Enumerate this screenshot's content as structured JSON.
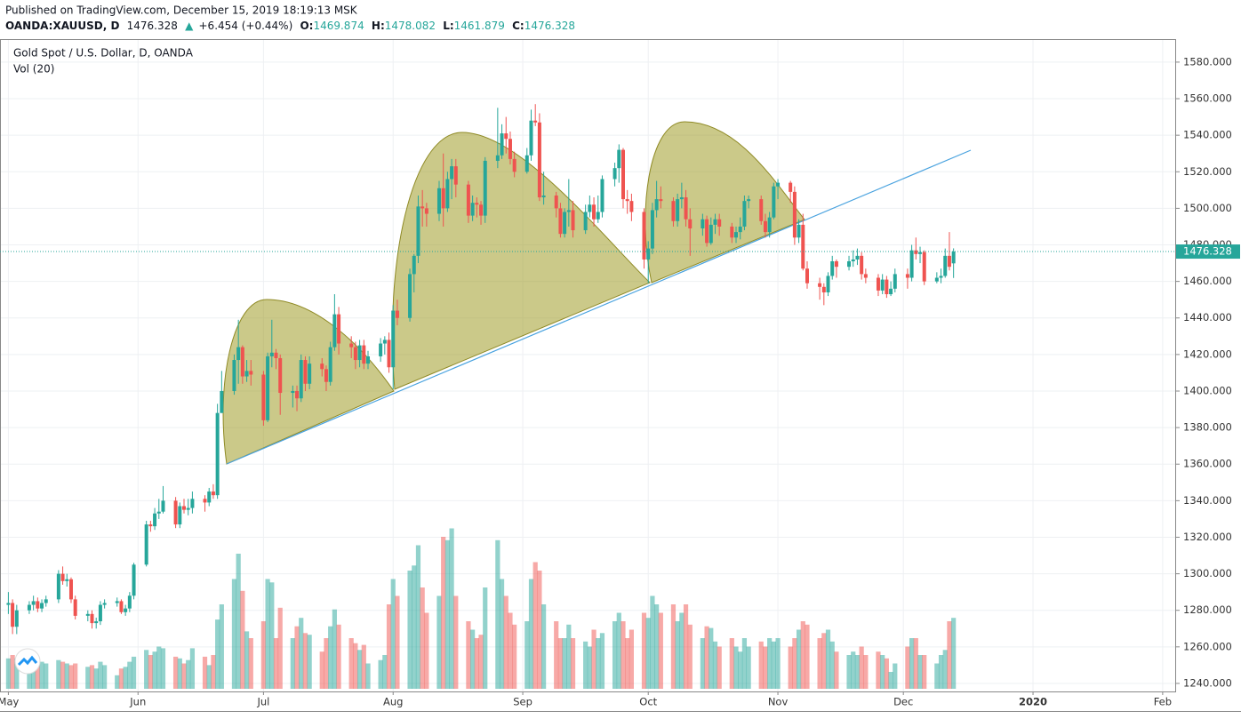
{
  "published": "Published on TradingView.com, December 15, 2019 18:19:13 MSK",
  "header": {
    "symbol": "OANDA:XAUUSD, D",
    "last": "1476.328",
    "arrow": "▲",
    "change": "+6.454 (+0.44%)",
    "o_label": "O:",
    "o": "1469.874",
    "h_label": "H:",
    "h": "1478.082",
    "l_label": "L:",
    "l": "1461.879",
    "c_label": "C:",
    "c": "1476.328"
  },
  "chart_data": {
    "type": "candlestick",
    "title": "Gold Spot / U.S. Dollar, D, OANDA",
    "indicator": "Vol (20)",
    "up_color": "#26a69a",
    "down_color": "#ef5350",
    "grid": true,
    "xlim": [
      -2,
      279
    ],
    "ylim": [
      1235.6,
      1592.6
    ],
    "volume_lim": [
      0,
      100
    ],
    "xticks": [
      {
        "value": 0,
        "label": "May"
      },
      {
        "value": 31,
        "label": "Jun"
      },
      {
        "value": 61,
        "label": "Jul"
      },
      {
        "value": 92,
        "label": "Aug"
      },
      {
        "value": 123,
        "label": "Sep"
      },
      {
        "value": 153,
        "label": "Oct"
      },
      {
        "value": 184,
        "label": "Nov"
      },
      {
        "value": 214,
        "label": "Dec"
      },
      {
        "value": 245,
        "label": "2020"
      },
      {
        "value": 276,
        "label": "Feb"
      }
    ],
    "yticks": [
      {
        "value": 1240,
        "label": "1240.000"
      },
      {
        "value": 1260,
        "label": "1260.000"
      },
      {
        "value": 1280,
        "label": "1280.000"
      },
      {
        "value": 1300,
        "label": "1300.000"
      },
      {
        "value": 1320,
        "label": "1320.000"
      },
      {
        "value": 1340,
        "label": "1340.000"
      },
      {
        "value": 1360,
        "label": "1360.000"
      },
      {
        "value": 1380,
        "label": "1380.000"
      },
      {
        "value": 1400,
        "label": "1400.000"
      },
      {
        "value": 1420,
        "label": "1420.000"
      },
      {
        "value": 1440,
        "label": "1440.000"
      },
      {
        "value": 1460,
        "label": "1460.000"
      },
      {
        "value": 1480,
        "label": "1480.000"
      },
      {
        "value": 1500,
        "label": "1500.000"
      },
      {
        "value": 1520,
        "label": "1520.000"
      },
      {
        "value": 1540,
        "label": "1540.000"
      },
      {
        "value": 1560,
        "label": "1560.000"
      },
      {
        "value": 1580,
        "label": "1580.000"
      }
    ],
    "last_price": {
      "value": 1476.328,
      "label": "1476.328"
    },
    "candles": [
      [
        0,
        1283,
        1290,
        1278,
        1284,
        18
      ],
      [
        1,
        1284,
        1286,
        1267,
        1271,
        20
      ],
      [
        2,
        1271,
        1283,
        1267,
        1280,
        18
      ],
      [
        5,
        1280,
        1285,
        1278,
        1283,
        18
      ],
      [
        6,
        1283,
        1288,
        1280,
        1285,
        15
      ],
      [
        7,
        1285,
        1287,
        1279,
        1281,
        15
      ],
      [
        8,
        1281,
        1286,
        1279,
        1284,
        16
      ],
      [
        9,
        1284,
        1288,
        1282,
        1286,
        15
      ],
      [
        12,
        1286,
        1302,
        1284,
        1300,
        17
      ],
      [
        13,
        1300,
        1304,
        1294,
        1296,
        16
      ],
      [
        14,
        1296,
        1300,
        1293,
        1297,
        15
      ],
      [
        15,
        1297,
        1298,
        1284,
        1286,
        14
      ],
      [
        16,
        1286,
        1288,
        1275,
        1277,
        15
      ],
      [
        19,
        1277,
        1280,
        1274,
        1278,
        13
      ],
      [
        20,
        1278,
        1280,
        1270,
        1273,
        14
      ],
      [
        21,
        1273,
        1276,
        1270,
        1274,
        12
      ],
      [
        22,
        1274,
        1285,
        1272,
        1283,
        16
      ],
      [
        23,
        1283,
        1286,
        1281,
        1284,
        14
      ],
      [
        26,
        1284,
        1287,
        1282,
        1285,
        8
      ],
      [
        27,
        1285,
        1286,
        1278,
        1279,
        12
      ],
      [
        28,
        1279,
        1283,
        1277,
        1281,
        13
      ],
      [
        29,
        1281,
        1290,
        1279,
        1288,
        16
      ],
      [
        30,
        1288,
        1306,
        1286,
        1305,
        19
      ],
      [
        33,
        1305,
        1329,
        1304,
        1327,
        23
      ],
      [
        34,
        1327,
        1329,
        1323,
        1326,
        20
      ],
      [
        35,
        1326,
        1336,
        1324,
        1333,
        22
      ],
      [
        36,
        1333,
        1341,
        1330,
        1334,
        25
      ],
      [
        37,
        1334,
        1348,
        1333,
        1340,
        24
      ],
      [
        40,
        1340,
        1342,
        1325,
        1327,
        19
      ],
      [
        41,
        1327,
        1339,
        1325,
        1337,
        18
      ],
      [
        42,
        1337,
        1341,
        1333,
        1335,
        15
      ],
      [
        43,
        1335,
        1341,
        1332,
        1336,
        17
      ],
      [
        44,
        1336,
        1345,
        1333,
        1341,
        24
      ],
      [
        47,
        1341,
        1343,
        1334,
        1339,
        19
      ],
      [
        48,
        1339,
        1347,
        1337,
        1345,
        14
      ],
      [
        49,
        1345,
        1349,
        1341,
        1343,
        20
      ],
      [
        50,
        1343,
        1393,
        1341,
        1388,
        41
      ],
      [
        51,
        1388,
        1411,
        1388,
        1400,
        50
      ],
      [
        54,
        1400,
        1420,
        1398,
        1417,
        65
      ],
      [
        55,
        1417,
        1439,
        1404,
        1424,
        80
      ],
      [
        56,
        1424,
        1425,
        1404,
        1408,
        58
      ],
      [
        57,
        1408,
        1417,
        1405,
        1411,
        34
      ],
      [
        58,
        1411,
        1417,
        1403,
        1409,
        30
      ],
      [
        61,
        1409,
        1411,
        1381,
        1384,
        40
      ],
      [
        62,
        1384,
        1421,
        1383,
        1419,
        65
      ],
      [
        63,
        1419,
        1439,
        1413,
        1421,
        63
      ],
      [
        64,
        1421,
        1423,
        1412,
        1418,
        30
      ],
      [
        65,
        1418,
        1420,
        1387,
        1399,
        48
      ],
      [
        68,
        1399,
        1403,
        1391,
        1400,
        30
      ],
      [
        69,
        1400,
        1403,
        1389,
        1396,
        37
      ],
      [
        70,
        1396,
        1420,
        1394,
        1417,
        42
      ],
      [
        71,
        1417,
        1419,
        1400,
        1404,
        33
      ],
      [
        72,
        1404,
        1419,
        1401,
        1415,
        32
      ],
      [
        75,
        1415,
        1418,
        1408,
        1412,
        22
      ],
      [
        76,
        1412,
        1414,
        1400,
        1405,
        30
      ],
      [
        77,
        1405,
        1427,
        1403,
        1424,
        37
      ],
      [
        78,
        1424,
        1453,
        1422,
        1442,
        47
      ],
      [
        79,
        1442,
        1446,
        1420,
        1426,
        38
      ],
      [
        82,
        1426,
        1430,
        1418,
        1424,
        30
      ],
      [
        83,
        1424,
        1427,
        1412,
        1417,
        27
      ],
      [
        84,
        1417,
        1428,
        1413,
        1425,
        23
      ],
      [
        85,
        1425,
        1428,
        1412,
        1415,
        26
      ],
      [
        86,
        1415,
        1422,
        1412,
        1419,
        15
      ],
      [
        89,
        1419,
        1429,
        1416,
        1426,
        17
      ],
      [
        90,
        1426,
        1430,
        1420,
        1428,
        20
      ],
      [
        91,
        1428,
        1432,
        1410,
        1413,
        50
      ],
      [
        92,
        1413,
        1447,
        1401,
        1444,
        65
      ],
      [
        93,
        1444,
        1450,
        1436,
        1440,
        55
      ],
      [
        96,
        1440,
        1467,
        1438,
        1464,
        70
      ],
      [
        97,
        1464,
        1475,
        1454,
        1474,
        73
      ],
      [
        98,
        1474,
        1507,
        1470,
        1501,
        85
      ],
      [
        99,
        1501,
        1510,
        1490,
        1500,
        60
      ],
      [
        100,
        1500,
        1503,
        1490,
        1497,
        45
      ],
      [
        103,
        1497,
        1515,
        1493,
        1511,
        55
      ],
      [
        104,
        1511,
        1530,
        1490,
        1500,
        90
      ],
      [
        105,
        1500,
        1520,
        1498,
        1516,
        88
      ],
      [
        106,
        1516,
        1527,
        1505,
        1523,
        95
      ],
      [
        107,
        1523,
        1527,
        1506,
        1513,
        55
      ],
      [
        110,
        1513,
        1515,
        1492,
        1496,
        40
      ],
      [
        111,
        1496,
        1507,
        1493,
        1503,
        35
      ],
      [
        112,
        1503,
        1506,
        1495,
        1502,
        30
      ],
      [
        113,
        1502,
        1504,
        1491,
        1496,
        32
      ],
      [
        114,
        1496,
        1528,
        1492,
        1526,
        60
      ],
      [
        117,
        1526,
        1555,
        1522,
        1529,
        88
      ],
      [
        118,
        1529,
        1546,
        1527,
        1541,
        65
      ],
      [
        119,
        1541,
        1550,
        1530,
        1538,
        55
      ],
      [
        120,
        1538,
        1542,
        1524,
        1527,
        45
      ],
      [
        121,
        1527,
        1531,
        1517,
        1520,
        38
      ],
      [
        124,
        1520,
        1533,
        1519,
        1529,
        40
      ],
      [
        125,
        1529,
        1554,
        1526,
        1548,
        65
      ],
      [
        126,
        1548,
        1557,
        1545,
        1547,
        75
      ],
      [
        127,
        1547,
        1552,
        1504,
        1506,
        70
      ],
      [
        128,
        1506,
        1520,
        1502,
        1507,
        50
      ],
      [
        131,
        1507,
        1509,
        1495,
        1500,
        40
      ],
      [
        132,
        1500,
        1503,
        1484,
        1486,
        30
      ],
      [
        133,
        1486,
        1500,
        1484,
        1498,
        30
      ],
      [
        134,
        1498,
        1516,
        1490,
        1499,
        38
      ],
      [
        135,
        1499,
        1504,
        1484,
        1488,
        30
      ],
      [
        138,
        1488,
        1502,
        1486,
        1498,
        28
      ],
      [
        139,
        1498,
        1507,
        1495,
        1502,
        25
      ],
      [
        140,
        1502,
        1506,
        1490,
        1494,
        35
      ],
      [
        141,
        1494,
        1507,
        1492,
        1498,
        30
      ],
      [
        142,
        1498,
        1518,
        1495,
        1516,
        33
      ],
      [
        145,
        1516,
        1525,
        1512,
        1522,
        40
      ],
      [
        146,
        1522,
        1535,
        1514,
        1532,
        45
      ],
      [
        147,
        1532,
        1533,
        1500,
        1505,
        40
      ],
      [
        148,
        1505,
        1510,
        1497,
        1504,
        30
      ],
      [
        149,
        1504,
        1508,
        1493,
        1498,
        35
      ],
      [
        152,
        1498,
        1500,
        1467,
        1472,
        45
      ],
      [
        153,
        1472,
        1482,
        1459,
        1478,
        42
      ],
      [
        154,
        1478,
        1503,
        1475,
        1499,
        55
      ],
      [
        155,
        1499,
        1515,
        1495,
        1505,
        50
      ],
      [
        156,
        1505,
        1512,
        1500,
        1504,
        45
      ],
      [
        159,
        1504,
        1506,
        1490,
        1493,
        50
      ],
      [
        160,
        1493,
        1508,
        1490,
        1505,
        40
      ],
      [
        161,
        1505,
        1514,
        1500,
        1506,
        45
      ],
      [
        162,
        1506,
        1510,
        1490,
        1494,
        50
      ],
      [
        163,
        1494,
        1500,
        1474,
        1489,
        38
      ],
      [
        166,
        1489,
        1497,
        1485,
        1494,
        30
      ],
      [
        167,
        1494,
        1496,
        1479,
        1481,
        37
      ],
      [
        168,
        1481,
        1495,
        1480,
        1491,
        36
      ],
      [
        169,
        1491,
        1497,
        1486,
        1494,
        28
      ],
      [
        170,
        1494,
        1497,
        1485,
        1490,
        25
      ],
      [
        173,
        1490,
        1492,
        1481,
        1484,
        30
      ],
      [
        174,
        1484,
        1490,
        1481,
        1487,
        25
      ],
      [
        175,
        1487,
        1495,
        1483,
        1490,
        22
      ],
      [
        176,
        1490,
        1507,
        1488,
        1504,
        30
      ],
      [
        177,
        1504,
        1507,
        1500,
        1505,
        25
      ],
      [
        180,
        1505,
        1507,
        1491,
        1493,
        28
      ],
      [
        181,
        1493,
        1497,
        1484,
        1487,
        25
      ],
      [
        182,
        1487,
        1498,
        1484,
        1495,
        30
      ],
      [
        183,
        1495,
        1514,
        1494,
        1512,
        28
      ],
      [
        184,
        1512,
        1516,
        1505,
        1514,
        30
      ],
      [
        187,
        1514,
        1515,
        1503,
        1509,
        25
      ],
      [
        188,
        1509,
        1512,
        1480,
        1484,
        30
      ],
      [
        189,
        1484,
        1494,
        1481,
        1491,
        35
      ],
      [
        190,
        1491,
        1497,
        1466,
        1467,
        40
      ],
      [
        191,
        1467,
        1471,
        1456,
        1459,
        38
      ],
      [
        194,
        1459,
        1462,
        1450,
        1457,
        30
      ],
      [
        195,
        1457,
        1459,
        1447,
        1454,
        33
      ],
      [
        196,
        1454,
        1465,
        1452,
        1463,
        35
      ],
      [
        197,
        1463,
        1474,
        1461,
        1471,
        28
      ],
      [
        198,
        1471,
        1472,
        1462,
        1468,
        22
      ],
      [
        201,
        1468,
        1474,
        1466,
        1471,
        20
      ],
      [
        202,
        1471,
        1477,
        1468,
        1472,
        22
      ],
      [
        203,
        1472,
        1478,
        1469,
        1474,
        20
      ],
      [
        204,
        1474,
        1476,
        1461,
        1464,
        25
      ],
      [
        205,
        1464,
        1467,
        1459,
        1462,
        20
      ],
      [
        208,
        1462,
        1464,
        1452,
        1455,
        22
      ],
      [
        209,
        1455,
        1464,
        1453,
        1461,
        20
      ],
      [
        210,
        1461,
        1463,
        1451,
        1453,
        18
      ],
      [
        211,
        1453,
        1460,
        1452,
        1456,
        10
      ],
      [
        212,
        1456,
        1467,
        1454,
        1464,
        15
      ],
      [
        215,
        1464,
        1467,
        1456,
        1462,
        25
      ],
      [
        216,
        1462,
        1480,
        1460,
        1477,
        30
      ],
      [
        217,
        1477,
        1484,
        1472,
        1475,
        30
      ],
      [
        218,
        1475,
        1479,
        1470,
        1476,
        20
      ],
      [
        219,
        1476,
        1477,
        1458,
        1460,
        20
      ],
      [
        222,
        1460,
        1465,
        1459,
        1462,
        15
      ],
      [
        223,
        1462,
        1467,
        1459,
        1463,
        20
      ],
      [
        224,
        1463,
        1478,
        1462,
        1474,
        23
      ],
      [
        225,
        1474,
        1487,
        1466,
        1468,
        40
      ],
      [
        226,
        1469.874,
        1478.082,
        1461.879,
        1476.328,
        42
      ]
    ]
  }
}
